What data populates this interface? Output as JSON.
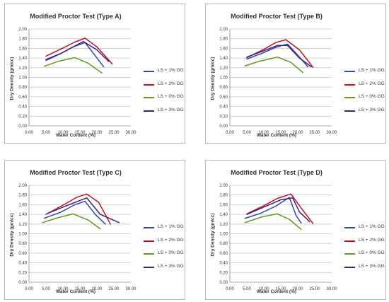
{
  "series_colors": {
    "LS + 1% GG": "#2a47b4",
    "LS + 2% GG": "#c0141a",
    "LS + 0% GG": "#5e9b1a",
    "LS + 3% GG": "#3f1f7a"
  },
  "chart_data": [
    {
      "type": "line",
      "title": "Modified Proctor Test (Type A)",
      "xlabel": "Water Content (%)",
      "ylabel": "Dry Density (gm/cc)",
      "xlim": [
        0,
        30
      ],
      "ylim": [
        0,
        2
      ],
      "x_ticks": [
        "0.00",
        "5.00",
        "10.00",
        "15.00",
        "20.00",
        "25.00",
        "30.00"
      ],
      "y_ticks": [
        "0.00",
        "0.20",
        "0.40",
        "0.60",
        "0.80",
        "1.00",
        "1.20",
        "1.40",
        "1.60",
        "1.80",
        "2.00"
      ],
      "grid": true,
      "legend": "right",
      "series": [
        {
          "name": "LS + 1% GG",
          "x": [
            5.0,
            9.0,
            13.0,
            16.5,
            19.5,
            22.0
          ],
          "y": [
            1.35,
            1.48,
            1.63,
            1.72,
            1.45,
            1.22
          ]
        },
        {
          "name": "LS + 2% GG",
          "x": [
            5.0,
            9.5,
            13.5,
            16.5,
            20.0,
            24.5
          ],
          "y": [
            1.44,
            1.59,
            1.73,
            1.81,
            1.63,
            1.28
          ]
        },
        {
          "name": "LS + 0% GG",
          "x": [
            4.5,
            8.5,
            13.5,
            17.5,
            21.5
          ],
          "y": [
            1.23,
            1.33,
            1.41,
            1.29,
            1.09
          ]
        },
        {
          "name": "LS + 3% GG",
          "x": [
            5.0,
            9.5,
            13.0,
            16.0,
            20.0,
            23.5
          ],
          "y": [
            1.37,
            1.5,
            1.63,
            1.74,
            1.57,
            1.33
          ]
        }
      ]
    },
    {
      "type": "line",
      "title": "Modified Proctor Test (Type B)",
      "xlabel": "Water Content (%)",
      "ylabel": "Dry Density (gm/cc)",
      "xlim": [
        0,
        30
      ],
      "ylim": [
        0,
        2
      ],
      "x_ticks": [
        "0.00",
        "5.00",
        "10.00",
        "15.00",
        "20.00",
        "25.00",
        "30.00"
      ],
      "y_ticks": [
        "0.00",
        "0.20",
        "0.40",
        "0.60",
        "0.80",
        "1.00",
        "1.20",
        "1.40",
        "1.60",
        "1.80",
        "2.00"
      ],
      "grid": true,
      "legend": "right",
      "series": [
        {
          "name": "LS + 1% GG",
          "x": [
            5.0,
            9.5,
            13.5,
            17.0,
            20.5,
            23.0
          ],
          "y": [
            1.38,
            1.5,
            1.62,
            1.69,
            1.42,
            1.22
          ]
        },
        {
          "name": "LS + 2% GG",
          "x": [
            5.0,
            10.0,
            13.5,
            16.5,
            20.5,
            24.5
          ],
          "y": [
            1.41,
            1.58,
            1.72,
            1.78,
            1.57,
            1.21
          ]
        },
        {
          "name": "LS + 0% GG",
          "x": [
            4.5,
            8.5,
            14.0,
            18.0,
            21.5
          ],
          "y": [
            1.24,
            1.33,
            1.42,
            1.31,
            1.1
          ]
        },
        {
          "name": "LS + 3% GG",
          "x": [
            5.0,
            10.0,
            14.0,
            17.0,
            20.5,
            24.0
          ],
          "y": [
            1.42,
            1.55,
            1.66,
            1.66,
            1.4,
            1.22
          ]
        }
      ]
    },
    {
      "type": "line",
      "title": "Modified Proctor Test (Type C)",
      "xlabel": "Water Content (%)",
      "ylabel": "Dry Density (gm/cc)",
      "xlim": [
        0,
        30
      ],
      "ylim": [
        0,
        2
      ],
      "x_ticks": [
        "0.00",
        "5.00",
        "10.00",
        "15.00",
        "20.00",
        "25.00",
        "30.00"
      ],
      "y_ticks": [
        "0.00",
        "0.20",
        "0.40",
        "0.60",
        "0.80",
        "1.00",
        "1.20",
        "1.40",
        "1.60",
        "1.80",
        "2.00"
      ],
      "grid": true,
      "legend": "right",
      "series": [
        {
          "name": "LS + 1% GG",
          "x": [
            4.5,
            9.5,
            13.5,
            16.5,
            19.5,
            22.5
          ],
          "y": [
            1.32,
            1.45,
            1.6,
            1.67,
            1.4,
            1.2
          ]
        },
        {
          "name": "LS + 2% GG",
          "x": [
            5.0,
            10.0,
            14.0,
            17.0,
            20.5,
            24.0
          ],
          "y": [
            1.4,
            1.59,
            1.75,
            1.82,
            1.65,
            1.2
          ]
        },
        {
          "name": "LS + 0% GG",
          "x": [
            4.0,
            8.5,
            13.0,
            17.5,
            21.0
          ],
          "y": [
            1.23,
            1.33,
            1.41,
            1.28,
            1.1
          ]
        },
        {
          "name": "LS + 3% GG",
          "x": [
            5.5,
            10.0,
            14.0,
            17.0,
            21.0,
            26.5
          ],
          "y": [
            1.42,
            1.55,
            1.66,
            1.74,
            1.4,
            1.23
          ]
        }
      ]
    },
    {
      "type": "line",
      "title": "Modified Proctor Test (Type D)",
      "xlabel": "Water Content (%)",
      "ylabel": "Dry Density (gm/cc)",
      "xlim": [
        0,
        30
      ],
      "ylim": [
        0,
        2
      ],
      "x_ticks": [
        "0.00",
        "5.00",
        "10.00",
        "15.00",
        "20.00",
        "25.00",
        "30.00"
      ],
      "y_ticks": [
        "0.00",
        "0.20",
        "0.40",
        "0.60",
        "0.80",
        "1.00",
        "1.20",
        "1.40",
        "1.60",
        "1.80",
        "2.00"
      ],
      "grid": true,
      "legend": "right",
      "series": [
        {
          "name": "LS + 1% GG",
          "x": [
            4.5,
            9.0,
            13.5,
            17.5,
            19.5,
            21.0
          ],
          "y": [
            1.32,
            1.42,
            1.57,
            1.75,
            1.38,
            1.22
          ]
        },
        {
          "name": "LS + 2% GG",
          "x": [
            5.0,
            10.0,
            14.0,
            18.0,
            21.0,
            24.5
          ],
          "y": [
            1.41,
            1.58,
            1.73,
            1.82,
            1.53,
            1.21
          ]
        },
        {
          "name": "LS + 0% GG",
          "x": [
            4.5,
            9.5,
            14.0,
            17.5,
            21.0
          ],
          "y": [
            1.23,
            1.35,
            1.41,
            1.3,
            1.09
          ]
        },
        {
          "name": "LS + 3% GG",
          "x": [
            5.0,
            10.0,
            15.0,
            18.5,
            20.5,
            23.5
          ],
          "y": [
            1.4,
            1.55,
            1.7,
            1.74,
            1.45,
            1.25
          ]
        }
      ]
    }
  ]
}
